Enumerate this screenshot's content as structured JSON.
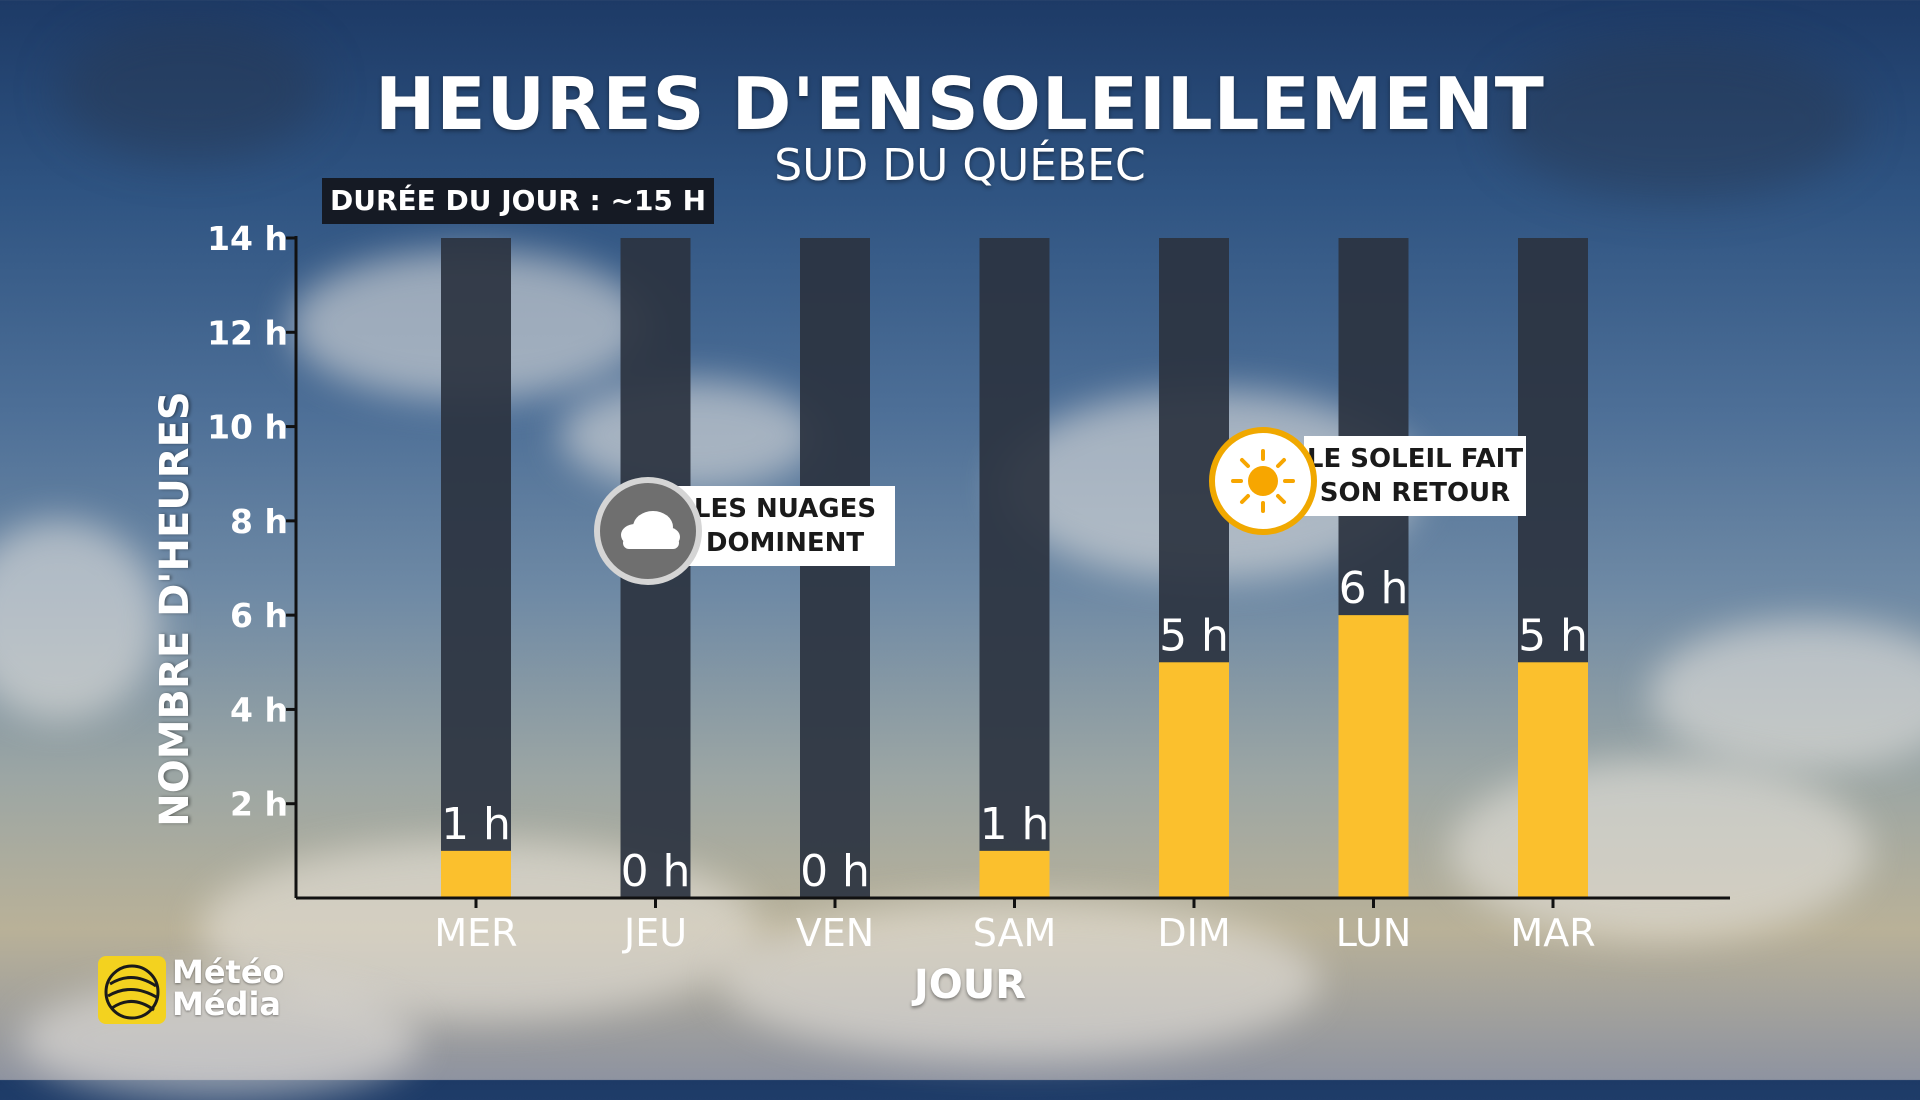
{
  "header": {
    "title": "HEURES D'ENSOLEILLEMENT",
    "subtitle": "SUD DU QUÉBEC",
    "daylight_note": "DURÉE DU JOUR : ~15 H"
  },
  "callouts": {
    "clouds": {
      "line1": "LES NUAGES",
      "line2": "DOMINENT",
      "icon": "cloud-icon"
    },
    "sun": {
      "line1": "LE SOLEIL FAIT",
      "line2": "SON RETOUR",
      "icon": "sun-icon"
    }
  },
  "branding": {
    "line1": "Météo",
    "line2": "Média",
    "icon": "globe-logo-icon"
  },
  "colors": {
    "bar_fill": "#fbc02d",
    "bar_track": "#2b3340",
    "badge_ring_sun": "#f0a800",
    "badge_ring_cloud": "#d0d0d0"
  },
  "chart_data": {
    "type": "bar",
    "title": "HEURES D'ENSOLEILLEMENT",
    "subtitle": "SUD DU QUÉBEC",
    "xlabel": "JOUR",
    "ylabel": "NOMBRE D'HEURES",
    "categories": [
      "MER",
      "JEU",
      "VEN",
      "SAM",
      "DIM",
      "LUN",
      "MAR"
    ],
    "values": [
      1,
      0,
      0,
      1,
      5,
      6,
      5
    ],
    "value_labels": [
      "1 h",
      "0 h",
      "0 h",
      "1 h",
      "5 h",
      "6 h",
      "5 h"
    ],
    "ylim": [
      0,
      14
    ],
    "yticks": [
      2,
      4,
      6,
      8,
      10,
      12,
      14
    ],
    "ytick_labels": [
      "2 h",
      "4 h",
      "6 h",
      "8 h",
      "10 h",
      "12 h",
      "14 h"
    ],
    "track_max": 14,
    "grid": false
  }
}
